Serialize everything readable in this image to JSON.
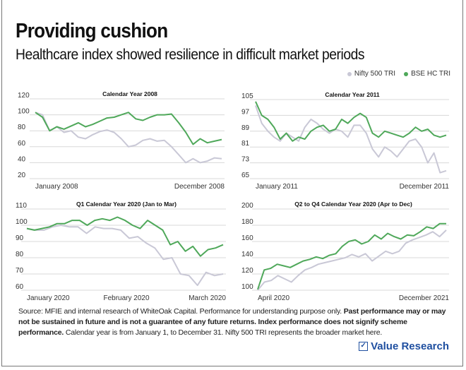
{
  "header": {
    "title": "Providing cushion",
    "subtitle": "Healthcare index showed resilience in difficult market periods"
  },
  "legend": [
    {
      "label": "Nifty 500 TRI",
      "color": "#c9c8d6"
    },
    {
      "label": "BSE HC TRI",
      "color": "#4fa85a"
    }
  ],
  "chart_data": [
    {
      "type": "line",
      "title": "Calendar Year 2008",
      "ylim": [
        20,
        120
      ],
      "yticks": [
        20,
        40,
        60,
        80,
        100,
        120
      ],
      "xlabels": [
        "January 2008",
        "December 2008"
      ],
      "grid": true,
      "series": [
        {
          "name": "Nifty 500 TRI",
          "values": [
            103,
            100,
            80,
            85,
            78,
            80,
            72,
            70,
            75,
            79,
            81,
            78,
            70,
            60,
            62,
            68,
            70,
            67,
            68,
            60,
            50,
            40,
            45,
            40,
            42,
            46,
            45
          ]
        },
        {
          "name": "BSE HC TRI",
          "values": [
            103,
            97,
            80,
            85,
            82,
            86,
            90,
            85,
            88,
            92,
            96,
            97,
            100,
            103,
            95,
            93,
            97,
            100,
            100,
            101,
            90,
            78,
            63,
            70,
            65,
            67,
            69
          ]
        }
      ]
    },
    {
      "type": "line",
      "title": "Calendar Year 2011",
      "ylim": [
        65,
        105
      ],
      "yticks": [
        65,
        73,
        81,
        89,
        97,
        105
      ],
      "xlabels": [
        "January 2011",
        "December 2011"
      ],
      "grid": true,
      "series": [
        {
          "name": "Nifty 500 TRI",
          "values": [
            102,
            93,
            89,
            86,
            84,
            88,
            86,
            84,
            91,
            95,
            93,
            90,
            88,
            90,
            89,
            86,
            92,
            92,
            88,
            80,
            76,
            81,
            79,
            76,
            80,
            84,
            85,
            81,
            73,
            78,
            68,
            69
          ]
        },
        {
          "name": "BSE HC TRI",
          "values": [
            104,
            97,
            95,
            91,
            85,
            88,
            84,
            86,
            85,
            89,
            91,
            92,
            89,
            90,
            95,
            93,
            96,
            98,
            96,
            88,
            86,
            89,
            88,
            87,
            86,
            88,
            91,
            89,
            90,
            87,
            86,
            87
          ]
        }
      ]
    },
    {
      "type": "line",
      "title": "Q1 Calendar Year 2020 (Jan to Mar)",
      "ylim": [
        60,
        110
      ],
      "yticks": [
        60,
        70,
        80,
        90,
        100,
        110
      ],
      "xlabels": [
        "January 2020",
        "February 2020",
        "March 2020"
      ],
      "grid": true,
      "series": [
        {
          "name": "Nifty 500 TRI",
          "values": [
            98,
            97,
            97,
            99,
            100,
            99,
            99,
            95,
            99,
            98,
            98,
            97,
            92,
            93,
            89,
            86,
            79,
            80,
            70,
            69,
            63,
            71,
            69,
            70
          ]
        },
        {
          "name": "BSE HC TRI",
          "values": [
            98,
            97,
            98,
            99,
            101,
            101,
            103,
            103,
            100,
            103,
            104,
            103,
            105,
            103,
            100,
            98,
            103,
            100,
            97,
            88,
            90,
            84,
            87,
            81,
            85,
            86,
            88
          ]
        }
      ]
    },
    {
      "type": "line",
      "title": "Q2 to Q4 Calendar Year 2020 (Apr to Dec)",
      "ylim": [
        100,
        200
      ],
      "yticks": [
        100,
        120,
        140,
        160,
        180,
        200
      ],
      "xlabels": [
        "April 2020",
        "December 2021"
      ],
      "grid": true,
      "series": [
        {
          "name": "Nifty 500 TRI",
          "values": [
            100,
            110,
            112,
            118,
            114,
            110,
            118,
            125,
            128,
            132,
            134,
            136,
            138,
            140,
            144,
            141,
            145,
            136,
            142,
            148,
            145,
            148,
            158,
            162,
            165,
            168,
            172,
            166,
            174
          ]
        },
        {
          "name": "BSE HC TRI",
          "values": [
            101,
            125,
            127,
            132,
            130,
            128,
            132,
            136,
            138,
            141,
            139,
            143,
            145,
            154,
            160,
            162,
            157,
            160,
            168,
            163,
            170,
            166,
            163,
            168,
            167,
            172,
            178,
            176,
            182,
            182
          ]
        }
      ]
    }
  ],
  "footer": {
    "source": "Source: MFIE and internal research of WhiteOak Capital. Performance for understanding purpose only. ",
    "disclaimer": "Past performance may or may not be sustained in future and is not a guarantee of any future returns. Index performance does not signify scheme performance.",
    "note": " Calendar year is from January 1, to December 31. Nifty 500 TRI represents the broader market here.",
    "logo": "Value Research"
  }
}
